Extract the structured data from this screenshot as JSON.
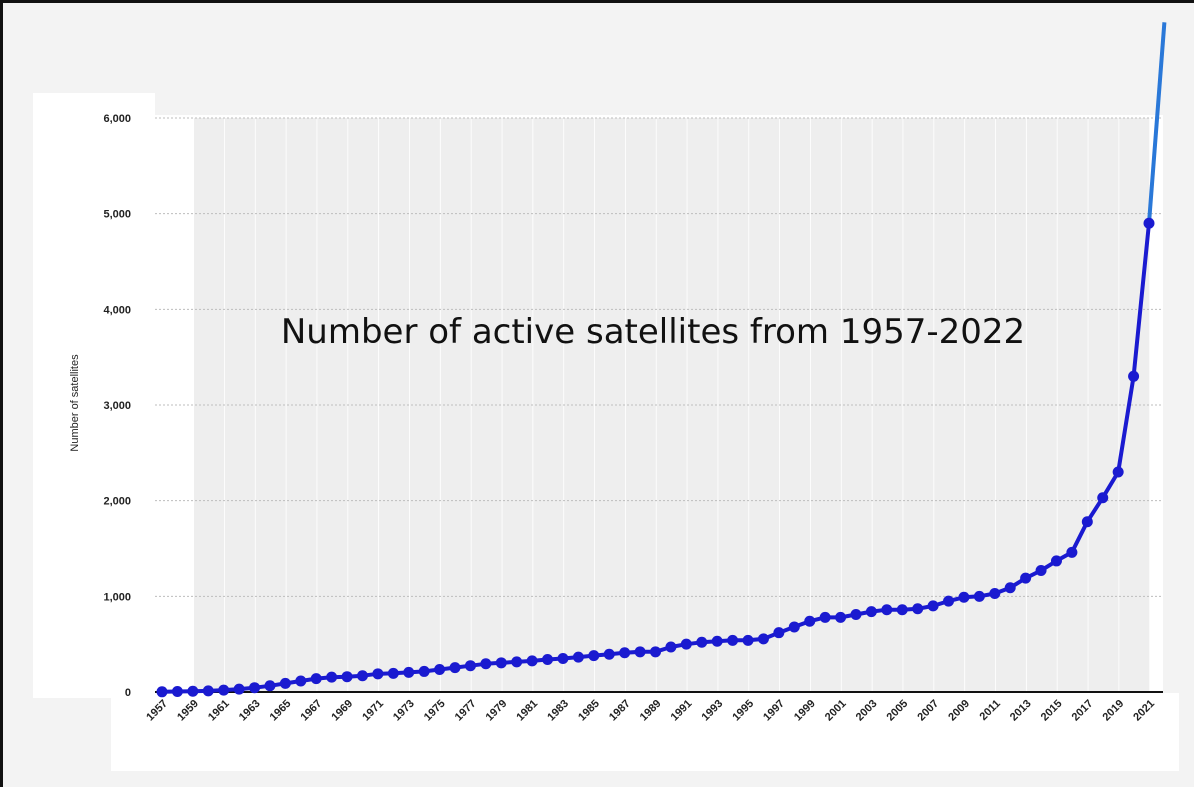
{
  "chart_data": {
    "type": "line",
    "title": "Number of active satellites from 1957-2022",
    "xlabel": "",
    "ylabel": "Number of satellites",
    "ylim": [
      0,
      6000
    ],
    "yticks": [
      0,
      1000,
      2000,
      3000,
      4000,
      5000,
      6000
    ],
    "ytick_labels": [
      "0",
      "1,000",
      "2,000",
      "3,000",
      "4,000",
      "5,000",
      "6,000"
    ],
    "xtick_labels": [
      "1957",
      "1959",
      "1961",
      "1963",
      "1965",
      "1967",
      "1969",
      "1971",
      "1973",
      "1975",
      "1977",
      "1979",
      "1981",
      "1983",
      "1985",
      "1987",
      "1989",
      "1991",
      "1993",
      "1995",
      "1997",
      "1999",
      "2001",
      "2003",
      "2005",
      "2007",
      "2009",
      "2011",
      "2013",
      "2015",
      "2017",
      "2019",
      "2021"
    ],
    "grid": true,
    "series": [
      {
        "color": "#1a1ad0",
        "x": [
          1957,
          1958,
          1959,
          1960,
          1961,
          1962,
          1963,
          1964,
          1965,
          1966,
          1967,
          1968,
          1969,
          1970,
          1971,
          1972,
          1973,
          1974,
          1975,
          1976,
          1977,
          1978,
          1979,
          1980,
          1981,
          1982,
          1983,
          1984,
          1985,
          1986,
          1987,
          1988,
          1989,
          1990,
          1991,
          1992,
          1993,
          1994,
          1995,
          1996,
          1997,
          1998,
          1999,
          2000,
          2001,
          2002,
          2003,
          2004,
          2005,
          2006,
          2007,
          2008,
          2009,
          2010,
          2011,
          2012,
          2013,
          2014,
          2015,
          2016,
          2017,
          2018,
          2019,
          2020,
          2021
        ],
        "values": [
          2,
          5,
          8,
          12,
          20,
          30,
          45,
          65,
          90,
          115,
          140,
          155,
          160,
          170,
          190,
          195,
          205,
          215,
          235,
          255,
          275,
          295,
          305,
          315,
          325,
          340,
          350,
          365,
          380,
          395,
          410,
          420,
          420,
          470,
          500,
          520,
          530,
          540,
          540,
          555,
          620,
          680,
          740,
          780,
          780,
          810,
          840,
          860,
          860,
          870,
          900,
          950,
          990,
          1000,
          1030,
          1090,
          1190,
          1270,
          1370,
          1460,
          1780,
          2030,
          2300,
          3300,
          4900
        ]
      }
    ],
    "extension": {
      "color": "#2a78d8",
      "x": [
        2021,
        2022
      ],
      "values": [
        4900,
        7000
      ]
    }
  }
}
